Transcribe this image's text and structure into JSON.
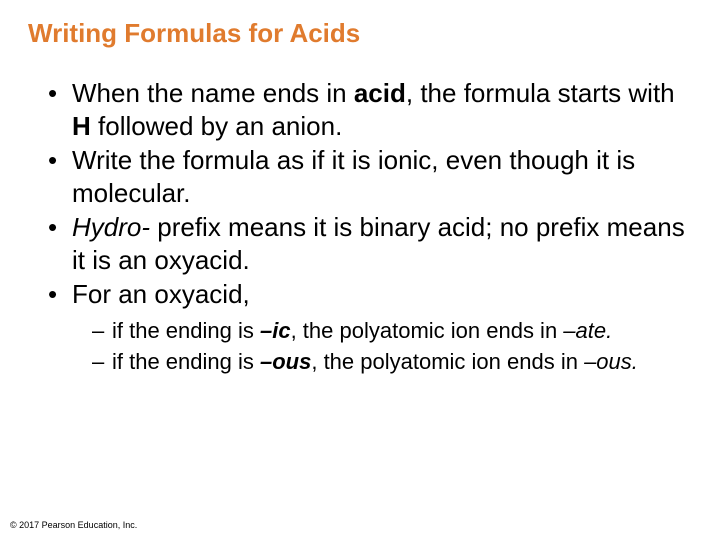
{
  "title": {
    "text": "Writing Formulas for Acids",
    "color": "#e07b2e",
    "fontsize": 26,
    "fontweight": "bold"
  },
  "bullets": [
    {
      "segments": [
        {
          "text": "When the name ends in ",
          "style": "normal"
        },
        {
          "text": "acid",
          "style": "bold"
        },
        {
          "text": ", the formula starts with ",
          "style": "normal"
        },
        {
          "text": "H",
          "style": "bold"
        },
        {
          "text": " followed by an anion.",
          "style": "normal"
        }
      ]
    },
    {
      "segments": [
        {
          "text": "Write the formula as if it is ionic, even though it is molecular.",
          "style": "normal"
        }
      ]
    },
    {
      "segments": [
        {
          "text": "Hydro-",
          "style": "italic"
        },
        {
          "text": " prefix means it is binary acid; no prefix means it is an oxyacid.",
          "style": "normal"
        }
      ]
    },
    {
      "segments": [
        {
          "text": "For an oxyacid,",
          "style": "normal"
        }
      ],
      "sub": [
        {
          "segments": [
            {
              "text": "if the ending is ",
              "style": "normal"
            },
            {
              "text": "–ic",
              "style": "bold-italic"
            },
            {
              "text": ", the polyatomic ion ends in ",
              "style": "normal"
            },
            {
              "text": "–ate.",
              "style": "italic"
            }
          ]
        },
        {
          "segments": [
            {
              "text": "if the ending is ",
              "style": "normal"
            },
            {
              "text": "–ous",
              "style": "bold-italic"
            },
            {
              "text": ", the polyatomic ion ends in ",
              "style": "normal"
            },
            {
              "text": "–ous.",
              "style": "italic"
            }
          ]
        }
      ]
    }
  ],
  "copyright": "© 2017 Pearson Education, Inc.",
  "colors": {
    "title": "#e07b2e",
    "body_text": "#000000",
    "background": "#ffffff"
  },
  "typography": {
    "title_fontsize": 26,
    "bullet_fontsize": 26,
    "sub_bullet_fontsize": 22,
    "copyright_fontsize": 9,
    "font_family": "Arial"
  }
}
